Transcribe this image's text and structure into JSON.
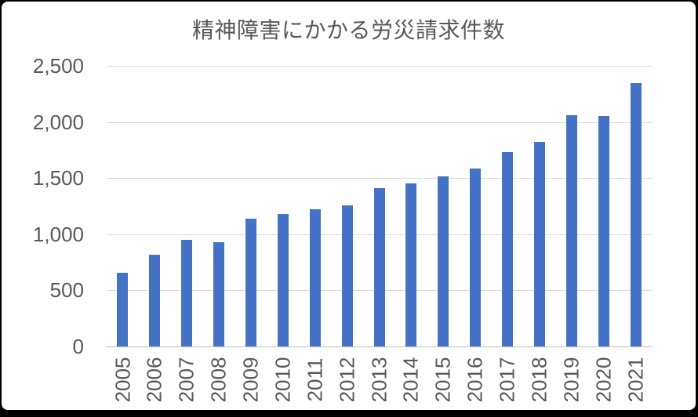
{
  "window": {
    "frame_background": "#000000",
    "panel_background": "#FFFFFF"
  },
  "chart_data": {
    "type": "bar",
    "title": "精神障害にかかる労災請求件数",
    "categories": [
      "2005",
      "2006",
      "2007",
      "2008",
      "2009",
      "2010",
      "2011",
      "2012",
      "2013",
      "2014",
      "2015",
      "2016",
      "2017",
      "2018",
      "2019",
      "2020",
      "2021"
    ],
    "values": [
      656,
      819,
      952,
      927,
      1136,
      1181,
      1220,
      1257,
      1409,
      1456,
      1515,
      1586,
      1732,
      1820,
      2060,
      2051,
      2346
    ],
    "xlabel": "",
    "ylabel": "",
    "ylim": [
      0,
      2500
    ],
    "ytick_values": [
      0,
      500,
      1000,
      1500,
      2000,
      2500
    ],
    "ytick_labels": [
      "0",
      "500",
      "1,000",
      "1,500",
      "2,000",
      "2,500"
    ],
    "grid": true,
    "legend_position": "none",
    "bar_color": "#4472C4",
    "gridline_color": "#D9D9D9",
    "axis_line_color": "#BFBFBF",
    "title_color": "#595959",
    "tick_label_color": "#595959"
  }
}
